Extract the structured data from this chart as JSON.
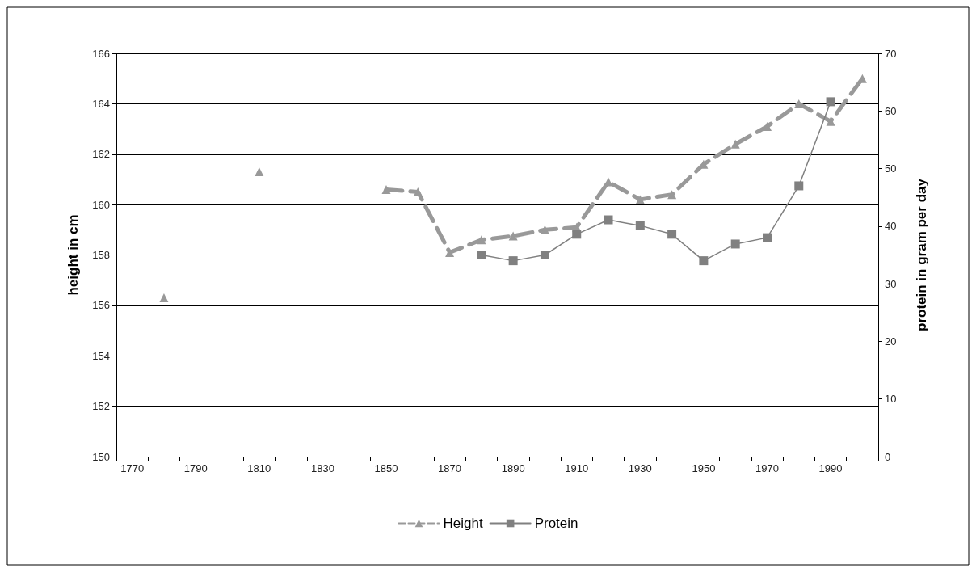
{
  "chart_data": {
    "type": "line",
    "ylabel": "height in cm",
    "y2label": "protein in gram per day",
    "categories": [
      "1770",
      null,
      "1790",
      null,
      "1810",
      null,
      "1830",
      null,
      "1850",
      null,
      "1870",
      null,
      "1890",
      null,
      "1910",
      null,
      "1930",
      null,
      "1950",
      null,
      "1970",
      null,
      "1990",
      null
    ],
    "series": [
      {
        "name": "Height",
        "color": "#999999",
        "marker": "triangle",
        "line_style": "dashed",
        "values": [
          null,
          156.3,
          null,
          null,
          161.3,
          null,
          null,
          null,
          160.6,
          160.5,
          158.1,
          158.6,
          158.75,
          159.0,
          159.1,
          160.9,
          160.2,
          160.4,
          161.6,
          162.4,
          163.1,
          164.0,
          163.3,
          165.0
        ]
      },
      {
        "name": "Protein",
        "color": "#808080",
        "marker": "square",
        "line_style": "solid",
        "axis": "y2",
        "values": [
          null,
          null,
          null,
          null,
          null,
          null,
          null,
          null,
          null,
          null,
          null,
          35,
          34,
          35,
          38.6,
          41.1,
          40.1,
          38.6,
          34,
          36.9,
          38,
          47,
          61.6,
          null
        ]
      }
    ],
    "ylim": [
      150,
      166
    ],
    "yticks": [
      150,
      152,
      154,
      156,
      158,
      160,
      162,
      164,
      166
    ],
    "y2lim": [
      0,
      70
    ],
    "y2ticks": [
      0,
      10,
      20,
      30,
      40,
      50,
      60,
      70
    ],
    "grid": "y",
    "legend": "bottom"
  }
}
